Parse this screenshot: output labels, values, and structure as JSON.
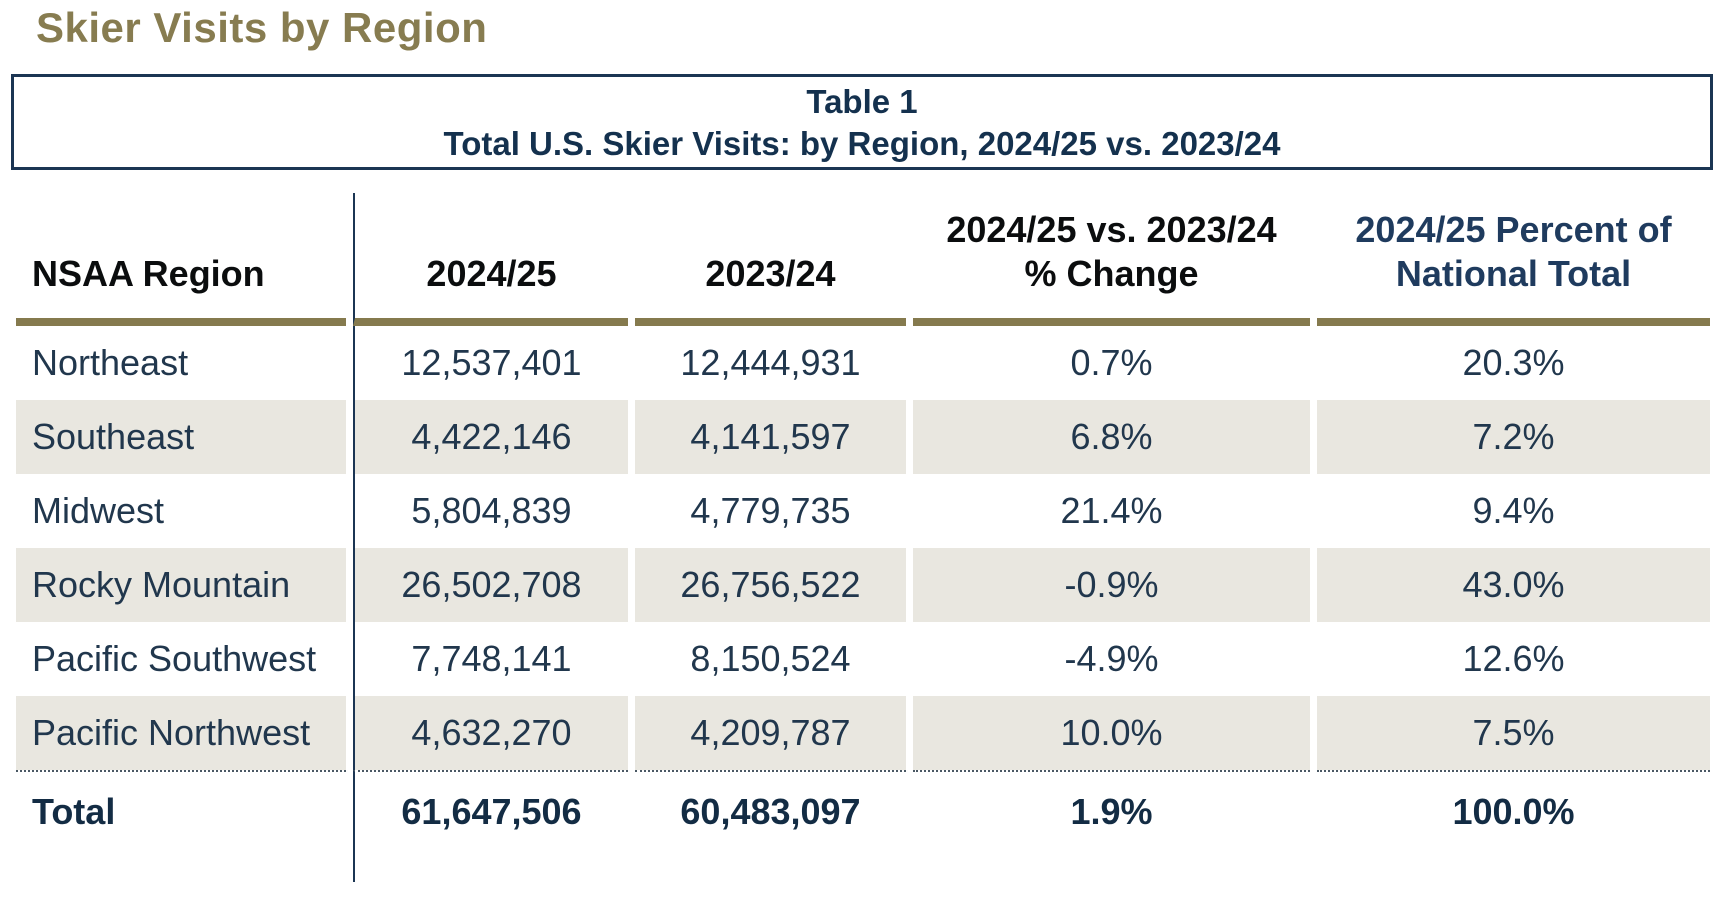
{
  "page": {
    "title": "Skier Visits by Region"
  },
  "colors": {
    "accent_olive": "#877C50",
    "gold_rule": "#857A4E",
    "navy_border": "#1B3553",
    "caption_text": "#14314E",
    "body_text": "#21374D",
    "row_shade": "#E9E7E0",
    "share_header_navy": "#1F3B5E"
  },
  "chart_data": {
    "type": "table",
    "title": "Table 1",
    "subtitle": "Total U.S. Skier Visits: by Region, 2024/25 vs. 2023/24",
    "columns": {
      "region": "NSAA Region",
      "season_current": "2024/25",
      "season_prior": "2023/24",
      "change_line1": "2024/25 vs. 2023/24",
      "change_line2": "% Change",
      "share_line1": "2024/25 Percent of",
      "share_line2": "National Total"
    },
    "rows": [
      {
        "region": "Northeast",
        "current": "12,537,401",
        "prior": "12,444,931",
        "change": "0.7%",
        "share": "20.3%"
      },
      {
        "region": "Southeast",
        "current": "4,422,146",
        "prior": "4,141,597",
        "change": "6.8%",
        "share": "7.2%"
      },
      {
        "region": "Midwest",
        "current": "5,804,839",
        "prior": "4,779,735",
        "change": "21.4%",
        "share": "9.4%"
      },
      {
        "region": "Rocky Mountain",
        "current": "26,502,708",
        "prior": "26,756,522",
        "change": "-0.9%",
        "share": "43.0%"
      },
      {
        "region": "Pacific Southwest",
        "current": "7,748,141",
        "prior": "8,150,524",
        "change": "-4.9%",
        "share": "12.6%"
      },
      {
        "region": "Pacific Northwest",
        "current": "4,632,270",
        "prior": "4,209,787",
        "change": "10.0%",
        "share": "7.5%"
      }
    ],
    "total_row": {
      "region": "Total",
      "current": "61,647,506",
      "prior": "60,483,097",
      "change": "1.9%",
      "share": "100.0%"
    }
  }
}
